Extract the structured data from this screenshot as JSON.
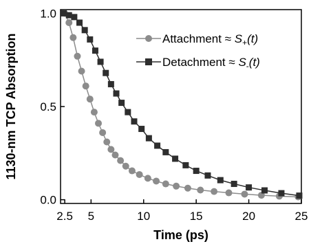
{
  "chart_data": {
    "type": "scatter",
    "xlabel": "Time (ps)",
    "ylabel": "1130-nm TCP Absorption",
    "xlim": [
      2.1,
      25
    ],
    "ylim": [
      -0.02,
      1.02
    ],
    "xticks": [
      2.5,
      5,
      10,
      15,
      20,
      25
    ],
    "xtick_labels": [
      "2.5",
      "5",
      "10",
      "15",
      "20",
      "25"
    ],
    "yticks": [
      0.0,
      0.5,
      1.0
    ],
    "ytick_labels": [
      "0.0",
      "0.5",
      "1.0"
    ],
    "grid": false,
    "legend_position": "top-right",
    "series": [
      {
        "name": "Attachment",
        "legend_prefix": "Attachment ≈ ",
        "legend_symbol": "S",
        "legend_sub": "+",
        "legend_arg": "(t)",
        "marker": "circle",
        "color": "#8c8c8c",
        "x": [
          2.5,
          2.9,
          3.3,
          3.7,
          4.1,
          4.5,
          4.9,
          5.3,
          5.7,
          6.1,
          6.5,
          6.9,
          7.3,
          7.8,
          8.3,
          8.9,
          9.6,
          10.4,
          11.2,
          12.1,
          13.1,
          14.2,
          15.4,
          16.7,
          18.1,
          19.6,
          21.2,
          22.9,
          24.7
        ],
        "y": [
          1.0,
          0.95,
          0.87,
          0.77,
          0.69,
          0.61,
          0.54,
          0.47,
          0.41,
          0.36,
          0.31,
          0.27,
          0.24,
          0.21,
          0.18,
          0.155,
          0.135,
          0.115,
          0.1,
          0.085,
          0.073,
          0.062,
          0.052,
          0.044,
          0.037,
          0.03,
          0.024,
          0.019,
          0.015
        ]
      },
      {
        "name": "Detachment",
        "legend_prefix": "Detachment ≈ ",
        "legend_symbol": "S",
        "legend_sub": "-",
        "legend_arg": "(t)",
        "marker": "square",
        "color": "#2e2e2e",
        "x": [
          2.4,
          2.9,
          3.4,
          3.9,
          4.4,
          4.9,
          5.4,
          5.9,
          6.4,
          6.9,
          7.4,
          7.9,
          8.5,
          9.1,
          9.8,
          10.5,
          11.3,
          12.1,
          13.0,
          14.0,
          15.0,
          16.1,
          17.3,
          18.6,
          20.0,
          21.5,
          23.1,
          24.8
        ],
        "y": [
          1.0,
          0.99,
          0.98,
          0.95,
          0.91,
          0.86,
          0.8,
          0.74,
          0.68,
          0.62,
          0.57,
          0.52,
          0.47,
          0.42,
          0.38,
          0.33,
          0.29,
          0.255,
          0.22,
          0.185,
          0.155,
          0.13,
          0.105,
          0.085,
          0.066,
          0.05,
          0.035,
          0.022
        ]
      }
    ]
  }
}
